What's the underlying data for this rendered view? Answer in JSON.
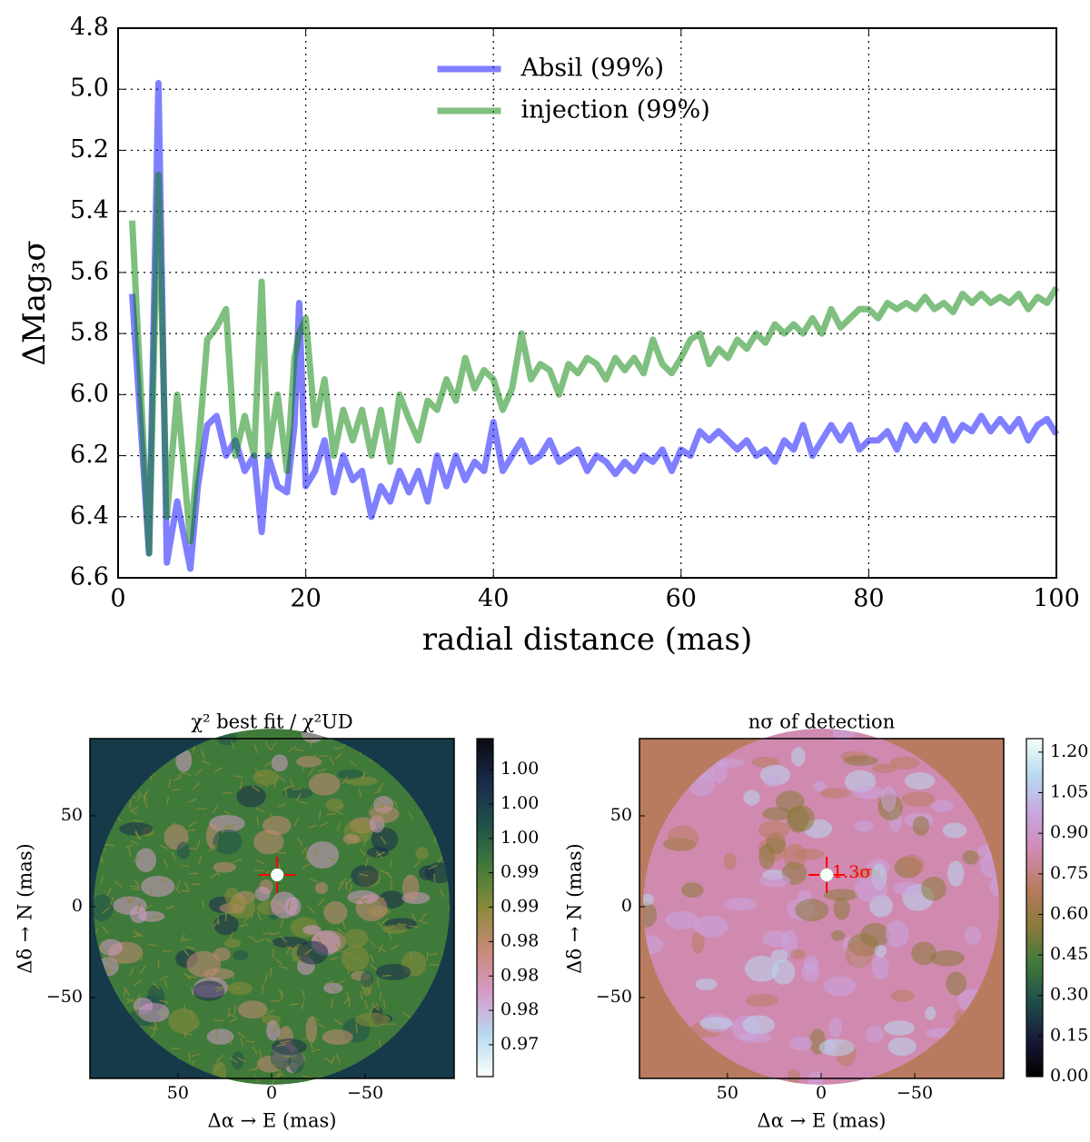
{
  "chart_data": [
    {
      "type": "line",
      "ylabel": "ΔMag₃σ",
      "xlabel": "radial distance (mas)",
      "xlim": [
        0,
        100
      ],
      "xticks": [
        0,
        20,
        40,
        60,
        80,
        100
      ],
      "ylim": [
        6.6,
        4.8
      ],
      "yticks": [
        4.8,
        {
          "value": 5,
          "label": "5.0"
        },
        5.2,
        5.4,
        5.6,
        5.8,
        {
          "value": 6,
          "label": "6.0"
        },
        6.2,
        6.4,
        6.6
      ],
      "grid": true,
      "legend": "upper center",
      "alpha": 0.5,
      "x": [
        1.5,
        3.3,
        4.3,
        5.2,
        6.3,
        7.7,
        8.5,
        9.5,
        10.5,
        11.5,
        12.5,
        13.5,
        14.5,
        15.3,
        16,
        17,
        18,
        18.8,
        19.3,
        20,
        21,
        22,
        23,
        24,
        25,
        26,
        27,
        28,
        29,
        30,
        31,
        32,
        33,
        34,
        35,
        36,
        37,
        38,
        39,
        40,
        41,
        42,
        43,
        44,
        45,
        46,
        47,
        48,
        49,
        50,
        51,
        52,
        53,
        54,
        55,
        56,
        57,
        58,
        59,
        60,
        61,
        62,
        63,
        64,
        65,
        66,
        67,
        68,
        69,
        70,
        71,
        72,
        73,
        74,
        75,
        76,
        77,
        78,
        79,
        80,
        81,
        82,
        83,
        84,
        85,
        86,
        87,
        88,
        89,
        90,
        91,
        92,
        93,
        94,
        95,
        96,
        97,
        98,
        99,
        100
      ],
      "series": [
        {
          "name": "Absil (99%)",
          "color": "#0000ff",
          "values": [
            5.67,
            6.52,
            4.98,
            6.55,
            6.35,
            6.57,
            6.3,
            6.1,
            6.07,
            6.2,
            6.15,
            6.25,
            6.2,
            6.45,
            6.2,
            6.3,
            6.32,
            6.1,
            5.7,
            6.3,
            6.25,
            6.15,
            6.32,
            6.2,
            6.28,
            6.25,
            6.4,
            6.3,
            6.35,
            6.25,
            6.32,
            6.25,
            6.35,
            6.2,
            6.3,
            6.2,
            6.28,
            6.22,
            6.25,
            6.09,
            6.25,
            6.2,
            6.15,
            6.22,
            6.2,
            6.15,
            6.22,
            6.2,
            6.18,
            6.25,
            6.2,
            6.22,
            6.26,
            6.22,
            6.25,
            6.2,
            6.22,
            6.18,
            6.25,
            6.18,
            6.2,
            6.12,
            6.15,
            6.12,
            6.15,
            6.18,
            6.15,
            6.2,
            6.18,
            6.22,
            6.15,
            6.18,
            6.1,
            6.2,
            6.15,
            6.1,
            6.15,
            6.1,
            6.18,
            6.15,
            6.15,
            6.12,
            6.18,
            6.1,
            6.15,
            6.1,
            6.15,
            6.08,
            6.15,
            6.1,
            6.12,
            6.07,
            6.12,
            6.08,
            6.12,
            6.08,
            6.15,
            6.1,
            6.08,
            6.13
          ]
        },
        {
          "name": "injection (99%)",
          "color": "#008000",
          "values": [
            5.43,
            6.52,
            5.28,
            6.4,
            6.0,
            6.48,
            6.2,
            5.82,
            5.78,
            5.72,
            6.2,
            6.07,
            6.2,
            5.63,
            6.2,
            6.0,
            6.25,
            5.88,
            5.8,
            5.75,
            6.1,
            5.95,
            6.2,
            6.05,
            6.15,
            6.05,
            6.2,
            6.05,
            6.22,
            6.0,
            6.08,
            6.15,
            6.02,
            6.05,
            5.95,
            6.02,
            5.88,
            5.98,
            5.92,
            5.95,
            6.05,
            5.98,
            5.8,
            5.95,
            5.9,
            5.92,
            6.0,
            5.9,
            5.93,
            5.88,
            5.9,
            5.95,
            5.88,
            5.92,
            5.88,
            5.93,
            5.82,
            5.9,
            5.93,
            5.88,
            5.82,
            5.8,
            5.9,
            5.85,
            5.88,
            5.82,
            5.85,
            5.8,
            5.83,
            5.77,
            5.8,
            5.77,
            5.8,
            5.75,
            5.8,
            5.72,
            5.78,
            5.75,
            5.72,
            5.72,
            5.75,
            5.7,
            5.72,
            5.7,
            5.72,
            5.68,
            5.72,
            5.7,
            5.73,
            5.67,
            5.7,
            5.67,
            5.7,
            5.68,
            5.7,
            5.67,
            5.72,
            5.68,
            5.7,
            5.65
          ]
        }
      ]
    },
    {
      "type": "heatmap",
      "title": "χ² best fit / χ²UD",
      "xlabel": "Δα → E (mas)",
      "ylabel": "Δδ → N (mas)",
      "xlim": [
        97,
        -97.5
      ],
      "xticks": [
        50,
        0,
        {
          "value": -50,
          "label": "−50"
        }
      ],
      "ylim": [
        -94.5,
        92.5
      ],
      "yticks": [
        50,
        0,
        {
          "value": -50,
          "label": "−50"
        }
      ],
      "background": "#163a4a",
      "colormap": [
        "#fbfffb",
        "#b8d8f0",
        "#d69ac8",
        "#c88a78",
        "#8a8a3a",
        "#3f7a3a",
        "#1f4f4a",
        "#1a2a4a",
        "#0a0a10"
      ],
      "clim": [
        0.9683,
        1.0076
      ],
      "cticks": [
        {
          "value": 1.004,
          "label": "1.00"
        },
        {
          "value": 1.0,
          "label": "1.00"
        },
        {
          "value": 0.996,
          "label": "1.00"
        },
        {
          "value": 0.992,
          "label": "0.99"
        },
        {
          "value": 0.988,
          "label": "0.99"
        },
        {
          "value": 0.984,
          "label": "0.98"
        },
        {
          "value": 0.98,
          "label": "0.98"
        },
        {
          "value": 0.976,
          "label": "0.98"
        },
        {
          "value": 0.972,
          "label": "0.97"
        }
      ],
      "marker": {
        "x": -3,
        "y": 17.5,
        "color": "#ff0000"
      }
    },
    {
      "type": "heatmap",
      "title": "nσ of detection",
      "xlabel": "Δα → E (mas)",
      "ylabel": "Δδ → N (mas)",
      "xlim": [
        97,
        -97.5
      ],
      "xticks": [
        50,
        0,
        {
          "value": -50,
          "label": "−50"
        }
      ],
      "ylim": [
        -94.5,
        92.5
      ],
      "yticks": [
        50,
        0,
        {
          "value": -50,
          "label": "−50"
        }
      ],
      "background": "#b97b5f",
      "colormap": [
        "#000000",
        "#1a1a3a",
        "#1f4f4a",
        "#3f7a3a",
        "#8a7a3a",
        "#b97b5f",
        "#d08ab0",
        "#c8a6e0",
        "#b8d8f0",
        "#f4fff8"
      ],
      "clim": [
        0,
        1.25
      ],
      "cticks": [
        {
          "value": 0,
          "label": "0.00"
        },
        {
          "value": 0.15,
          "label": "0.15"
        },
        {
          "value": 0.3,
          "label": "0.30"
        },
        {
          "value": 0.45,
          "label": "0.45"
        },
        {
          "value": 0.6,
          "label": "0.60"
        },
        {
          "value": 0.75,
          "label": "0.75"
        },
        {
          "value": 0.9,
          "label": "0.90"
        },
        {
          "value": 1.05,
          "label": "1.05"
        },
        {
          "value": 1.2,
          "label": "1.20"
        }
      ],
      "marker": {
        "x": -3,
        "y": 17.5,
        "color": "#ff0000"
      },
      "annotation": "1.3σ"
    }
  ]
}
